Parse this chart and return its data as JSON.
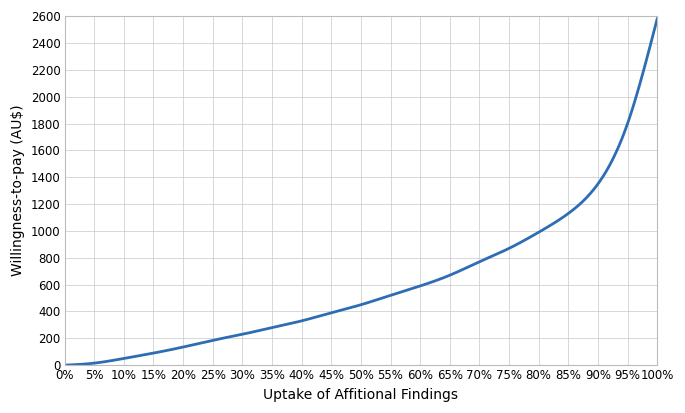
{
  "xlabel": "Uptake of Affitional Findings",
  "ylabel": "Willingness-to-pay (AU$)",
  "xlim": [
    0.0,
    1.0
  ],
  "ylim": [
    0,
    2600
  ],
  "yticks": [
    0,
    200,
    400,
    600,
    800,
    1000,
    1200,
    1400,
    1600,
    1800,
    2000,
    2200,
    2400,
    2600
  ],
  "xticks": [
    0.0,
    0.05,
    0.1,
    0.15,
    0.2,
    0.25,
    0.3,
    0.35,
    0.4,
    0.45,
    0.5,
    0.55,
    0.6,
    0.65,
    0.7,
    0.75,
    0.8,
    0.85,
    0.9,
    0.95,
    1.0
  ],
  "xtick_labels": [
    "0%",
    "5%",
    "10%",
    "15%",
    "20%",
    "25%",
    "30%",
    "35%",
    "40%",
    "45%",
    "50%",
    "55%",
    "60%",
    "65%",
    "70%",
    "75%",
    "80%",
    "85%",
    "90%",
    "95%",
    "100%"
  ],
  "line_color": "#2E6DB4",
  "line_width": 2.0,
  "background_color": "#FFFFFF",
  "grid_color": "#C8C8C8",
  "xlabel_fontsize": 10,
  "ylabel_fontsize": 10,
  "tick_fontsize": 8.5,
  "x_pts": [
    0.0,
    0.05,
    0.1,
    0.15,
    0.2,
    0.25,
    0.3,
    0.35,
    0.4,
    0.45,
    0.5,
    0.55,
    0.6,
    0.65,
    0.7,
    0.75,
    0.8,
    0.85,
    0.9,
    0.95,
    1.0
  ],
  "y_pts": [
    0,
    15,
    50,
    90,
    135,
    185,
    230,
    280,
    330,
    390,
    450,
    520,
    590,
    670,
    770,
    870,
    990,
    1130,
    1350,
    1800,
    2580
  ]
}
